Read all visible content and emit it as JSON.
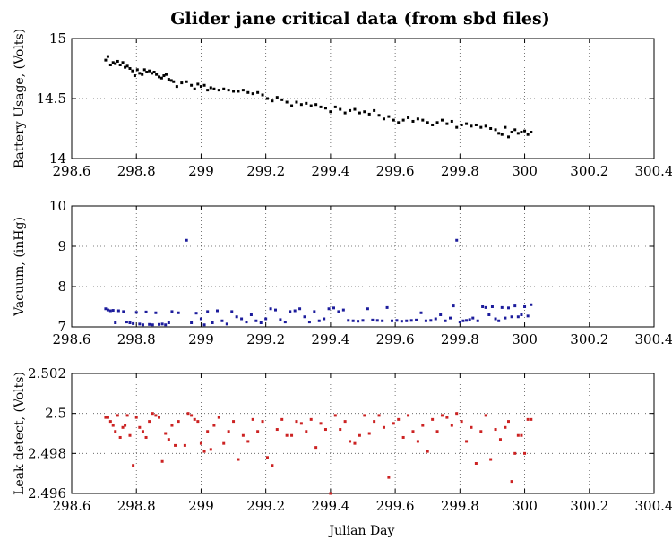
{
  "title": "Glider jane critical data (from sbd files)",
  "title_color": "#6a0c0c",
  "chart_data": [
    {
      "type": "scatter",
      "ylabel": "Battery Usage, (Volts)",
      "xlabel": "",
      "xlim": [
        298.6,
        300.4
      ],
      "ylim": [
        14,
        15
      ],
      "xticks": [
        "298.6",
        "298.8",
        "299",
        "299.2",
        "299.4",
        "299.6",
        "299.8",
        "300",
        "300.2",
        "300.4"
      ],
      "yticks": [
        "14",
        "14.5",
        "15"
      ],
      "grid": true,
      "series": [
        {
          "color": "#000000",
          "x": [
            298.705,
            298.712,
            298.72,
            298.728,
            298.735,
            298.742,
            298.75,
            298.758,
            298.765,
            298.772,
            298.78,
            298.788,
            298.795,
            298.803,
            298.81,
            298.818,
            298.825,
            298.832,
            298.84,
            298.848,
            298.855,
            298.862,
            298.87,
            298.878,
            298.885,
            298.892,
            298.9,
            298.908,
            298.915,
            298.925,
            298.94,
            298.955,
            298.97,
            298.98,
            298.99,
            299.0,
            299.01,
            299.02,
            299.03,
            299.04,
            299.055,
            299.07,
            299.085,
            299.1,
            299.115,
            299.13,
            299.145,
            299.16,
            299.175,
            299.19,
            299.205,
            299.22,
            299.235,
            299.25,
            299.265,
            299.28,
            299.295,
            299.31,
            299.325,
            299.34,
            299.355,
            299.37,
            299.385,
            299.4,
            299.415,
            299.43,
            299.445,
            299.46,
            299.475,
            299.49,
            299.505,
            299.52,
            299.535,
            299.55,
            299.565,
            299.58,
            299.595,
            299.61,
            299.625,
            299.64,
            299.655,
            299.67,
            299.685,
            299.7,
            299.715,
            299.73,
            299.745,
            299.76,
            299.775,
            299.79,
            299.805,
            299.82,
            299.835,
            299.85,
            299.865,
            299.88,
            299.895,
            299.91,
            299.92,
            299.93,
            299.94,
            299.95,
            299.96,
            299.97,
            299.98,
            299.99,
            300.0,
            300.01,
            300.02
          ],
          "y": [
            14.82,
            14.85,
            14.78,
            14.8,
            14.79,
            14.81,
            14.78,
            14.8,
            14.76,
            14.77,
            14.75,
            14.73,
            14.69,
            14.74,
            14.71,
            14.7,
            14.74,
            14.72,
            14.73,
            14.71,
            14.72,
            14.7,
            14.68,
            14.67,
            14.69,
            14.7,
            14.66,
            14.65,
            14.64,
            14.6,
            14.63,
            14.64,
            14.61,
            14.58,
            14.62,
            14.6,
            14.61,
            14.57,
            14.59,
            14.58,
            14.57,
            14.58,
            14.57,
            14.56,
            14.56,
            14.57,
            14.55,
            14.54,
            14.55,
            14.53,
            14.5,
            14.48,
            14.51,
            14.49,
            14.47,
            14.44,
            14.47,
            14.45,
            14.46,
            14.44,
            14.45,
            14.43,
            14.42,
            14.39,
            14.43,
            14.41,
            14.38,
            14.4,
            14.41,
            14.38,
            14.39,
            14.37,
            14.4,
            14.36,
            14.33,
            14.35,
            14.32,
            14.3,
            14.32,
            14.34,
            14.31,
            14.33,
            14.32,
            14.3,
            14.28,
            14.3,
            14.32,
            14.29,
            14.31,
            14.26,
            14.28,
            14.29,
            14.27,
            14.28,
            14.26,
            14.27,
            14.25,
            14.24,
            14.21,
            14.2,
            14.26,
            14.18,
            14.22,
            14.24,
            14.21,
            14.22,
            14.23,
            14.2,
            14.22
          ]
        }
      ]
    },
    {
      "type": "scatter",
      "ylabel": "Vacuum, (inHg)",
      "xlabel": "",
      "xlim": [
        298.6,
        300.4
      ],
      "ylim": [
        7,
        10
      ],
      "xticks": [
        "298.6",
        "298.8",
        "299",
        "299.2",
        "299.4",
        "299.6",
        "299.8",
        "300",
        "300.2",
        "300.4"
      ],
      "yticks": [
        "7",
        "8",
        "9",
        "10"
      ],
      "grid": true,
      "series": [
        {
          "color": "#1c1c9c",
          "x": [
            298.705,
            298.712,
            298.72,
            298.728,
            298.735,
            298.745,
            298.76,
            298.77,
            298.78,
            298.79,
            298.8,
            298.81,
            298.82,
            298.83,
            298.84,
            298.85,
            298.86,
            298.87,
            298.88,
            298.89,
            298.9,
            298.91,
            298.93,
            298.955,
            298.97,
            298.985,
            299.0,
            299.01,
            299.02,
            299.035,
            299.05,
            299.065,
            299.08,
            299.095,
            299.11,
            299.125,
            299.14,
            299.155,
            299.17,
            299.185,
            299.2,
            299.215,
            299.23,
            299.245,
            299.26,
            299.275,
            299.29,
            299.305,
            299.32,
            299.335,
            299.35,
            299.365,
            299.38,
            299.395,
            299.41,
            299.425,
            299.44,
            299.455,
            299.47,
            299.485,
            299.5,
            299.515,
            299.53,
            299.545,
            299.56,
            299.575,
            299.59,
            299.605,
            299.62,
            299.635,
            299.65,
            299.665,
            299.68,
            299.695,
            299.71,
            299.725,
            299.74,
            299.755,
            299.77,
            299.78,
            299.79,
            299.8,
            299.81,
            299.82,
            299.83,
            299.84,
            299.855,
            299.87,
            299.88,
            299.89,
            299.9,
            299.91,
            299.92,
            299.93,
            299.94,
            299.95,
            299.96,
            299.97,
            299.98,
            299.99,
            300.0,
            300.01,
            300.02
          ],
          "y": [
            7.45,
            7.42,
            7.4,
            7.41,
            7.1,
            7.4,
            7.38,
            7.12,
            7.1,
            7.08,
            7.36,
            7.07,
            7.05,
            7.37,
            7.06,
            7.05,
            7.35,
            7.06,
            7.07,
            7.05,
            7.1,
            7.38,
            7.35,
            9.15,
            7.1,
            7.34,
            7.2,
            7.05,
            7.38,
            7.1,
            7.4,
            7.15,
            7.07,
            7.38,
            7.25,
            7.2,
            7.12,
            7.3,
            7.15,
            7.1,
            7.2,
            7.45,
            7.42,
            7.18,
            7.12,
            7.38,
            7.4,
            7.45,
            7.25,
            7.12,
            7.38,
            7.15,
            7.2,
            7.45,
            7.47,
            7.38,
            7.42,
            7.16,
            7.15,
            7.14,
            7.16,
            7.45,
            7.17,
            7.16,
            7.15,
            7.48,
            7.15,
            7.16,
            7.14,
            7.15,
            7.16,
            7.17,
            7.35,
            7.15,
            7.16,
            7.2,
            7.3,
            7.15,
            7.22,
            7.52,
            9.15,
            7.12,
            7.15,
            7.16,
            7.18,
            7.22,
            7.15,
            7.5,
            7.48,
            7.3,
            7.5,
            7.2,
            7.15,
            7.48,
            7.22,
            7.47,
            7.25,
            7.52,
            7.25,
            7.3,
            7.5,
            7.27,
            7.55
          ]
        }
      ]
    },
    {
      "type": "scatter",
      "ylabel": "Leak detect, (Volts)",
      "xlabel": "Julian Day",
      "xlim": [
        298.6,
        300.4
      ],
      "ylim": [
        2.496,
        2.502
      ],
      "xticks": [
        "298.6",
        "298.8",
        "299",
        "299.2",
        "299.4",
        "299.6",
        "299.8",
        "300",
        "300.2",
        "300.4"
      ],
      "yticks": [
        "2.496",
        "2.498",
        "2.5",
        "2.502"
      ],
      "grid": true,
      "series": [
        {
          "color": "#cc2222",
          "x": [
            298.705,
            298.712,
            298.72,
            298.728,
            298.735,
            298.742,
            298.75,
            298.758,
            298.765,
            298.772,
            298.78,
            298.79,
            298.8,
            298.81,
            298.82,
            298.83,
            298.84,
            298.85,
            298.86,
            298.87,
            298.88,
            298.89,
            298.9,
            298.91,
            298.92,
            298.93,
            298.95,
            298.96,
            298.97,
            298.98,
            298.99,
            299.0,
            299.01,
            299.02,
            299.03,
            299.04,
            299.055,
            299.07,
            299.085,
            299.1,
            299.115,
            299.13,
            299.145,
            299.16,
            299.175,
            299.19,
            299.205,
            299.22,
            299.235,
            299.25,
            299.265,
            299.28,
            299.295,
            299.31,
            299.325,
            299.34,
            299.355,
            299.37,
            299.385,
            299.4,
            299.415,
            299.43,
            299.445,
            299.46,
            299.475,
            299.49,
            299.505,
            299.52,
            299.535,
            299.55,
            299.565,
            299.58,
            299.595,
            299.61,
            299.625,
            299.64,
            299.655,
            299.67,
            299.685,
            299.7,
            299.715,
            299.73,
            299.745,
            299.76,
            299.775,
            299.79,
            299.805,
            299.82,
            299.835,
            299.85,
            299.865,
            299.88,
            299.895,
            299.91,
            299.925,
            299.94,
            299.95,
            299.96,
            299.97,
            299.98,
            299.99,
            300.0,
            300.01,
            300.02
          ],
          "y": [
            2.4998,
            2.4998,
            2.4996,
            2.4994,
            2.4991,
            2.4999,
            2.4988,
            2.4993,
            2.4994,
            2.4999,
            2.4989,
            2.4974,
            2.4998,
            2.4993,
            2.4991,
            2.4988,
            2.4996,
            2.5,
            2.4999,
            2.4998,
            2.4976,
            2.499,
            2.4987,
            2.4994,
            2.4984,
            2.4996,
            2.4984,
            2.5,
            2.4999,
            2.4997,
            2.4996,
            2.4985,
            2.4981,
            2.4991,
            2.4982,
            2.4994,
            2.4998,
            2.4985,
            2.4991,
            2.4996,
            2.4977,
            2.4989,
            2.4986,
            2.4997,
            2.4991,
            2.4996,
            2.4978,
            2.4974,
            2.4992,
            2.4997,
            2.4989,
            2.4989,
            2.4996,
            2.4995,
            2.4991,
            2.4997,
            2.4983,
            2.4995,
            2.4992,
            2.496,
            2.4999,
            2.4992,
            2.4996,
            2.4986,
            2.4985,
            2.4989,
            2.4999,
            2.499,
            2.4996,
            2.4999,
            2.4993,
            2.4968,
            2.4995,
            2.4997,
            2.4988,
            2.4999,
            2.4991,
            2.4986,
            2.4994,
            2.4981,
            2.4997,
            2.4991,
            2.4999,
            2.4998,
            2.4994,
            2.5,
            2.4996,
            2.4986,
            2.4993,
            2.4975,
            2.4991,
            2.4999,
            2.4977,
            2.4992,
            2.4987,
            2.4993,
            2.4996,
            2.4966,
            2.498,
            2.4989,
            2.4989,
            2.498,
            2.4997,
            2.4997
          ]
        }
      ]
    }
  ]
}
